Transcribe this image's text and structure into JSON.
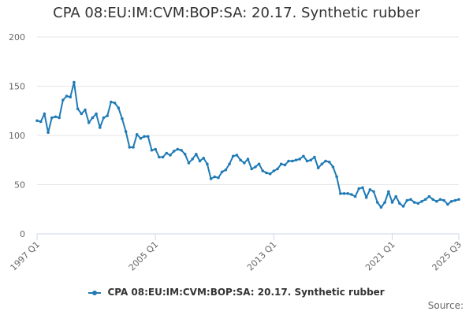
{
  "title": "CPA 08:EU:IM:CVM:BOP:SA: 20.17. Synthetic rubber",
  "source_label": "Source:",
  "colors": {
    "series": "#1f7ab6",
    "grid": "#e6e6e6",
    "axis": "#ccd6eb"
  },
  "chart_data": {
    "type": "line",
    "title": "CPA 08:EU:IM:CVM:BOP:SA: 20.17. Synthetic rubber",
    "xlabel": "",
    "ylabel": "",
    "ylim": [
      0,
      200
    ],
    "y_ticks": [
      0,
      50,
      100,
      150,
      200
    ],
    "x_tick_labels": [
      "1997 Q1",
      "2005 Q1",
      "2013 Q1",
      "2021 Q1",
      "2025 Q3"
    ],
    "x_tick_index": [
      0,
      32,
      64,
      96,
      114
    ],
    "grid": true,
    "legend": "bottom-center",
    "series": [
      {
        "name": "CPA 08:EU:IM:CVM:BOP:SA: 20.17. Synthetic rubber",
        "x": [
          "1997 Q1",
          "1997 Q2",
          "1997 Q3",
          "1997 Q4",
          "1998 Q1",
          "1998 Q2",
          "1998 Q3",
          "1998 Q4",
          "1999 Q1",
          "1999 Q2",
          "1999 Q3",
          "1999 Q4",
          "2000 Q1",
          "2000 Q2",
          "2000 Q3",
          "2000 Q4",
          "2001 Q1",
          "2001 Q2",
          "2001 Q3",
          "2001 Q4",
          "2002 Q1",
          "2002 Q2",
          "2002 Q3",
          "2002 Q4",
          "2003 Q1",
          "2003 Q2",
          "2003 Q3",
          "2003 Q4",
          "2004 Q1",
          "2004 Q2",
          "2004 Q3",
          "2004 Q4",
          "2005 Q1",
          "2005 Q2",
          "2005 Q3",
          "2005 Q4",
          "2006 Q1",
          "2006 Q2",
          "2006 Q3",
          "2006 Q4",
          "2007 Q1",
          "2007 Q2",
          "2007 Q3",
          "2007 Q4",
          "2008 Q1",
          "2008 Q2",
          "2008 Q3",
          "2008 Q4",
          "2009 Q1",
          "2009 Q2",
          "2009 Q3",
          "2009 Q4",
          "2010 Q1",
          "2010 Q2",
          "2010 Q3",
          "2010 Q4",
          "2011 Q1",
          "2011 Q2",
          "2011 Q3",
          "2011 Q4",
          "2012 Q1",
          "2012 Q2",
          "2012 Q3",
          "2012 Q4",
          "2013 Q1",
          "2013 Q2",
          "2013 Q3",
          "2013 Q4",
          "2014 Q1",
          "2014 Q2",
          "2014 Q3",
          "2014 Q4",
          "2015 Q1",
          "2015 Q2",
          "2015 Q3",
          "2015 Q4",
          "2016 Q1",
          "2016 Q2",
          "2016 Q3",
          "2016 Q4",
          "2017 Q1",
          "2017 Q2",
          "2017 Q3",
          "2017 Q4",
          "2018 Q1",
          "2018 Q2",
          "2018 Q3",
          "2018 Q4",
          "2019 Q1",
          "2019 Q2",
          "2019 Q3",
          "2019 Q4",
          "2020 Q1",
          "2020 Q2",
          "2020 Q3",
          "2020 Q4",
          "2021 Q1",
          "2021 Q2",
          "2021 Q3",
          "2021 Q4",
          "2022 Q1",
          "2022 Q2",
          "2022 Q3",
          "2022 Q4",
          "2023 Q1",
          "2023 Q2",
          "2023 Q3",
          "2023 Q4",
          "2024 Q1",
          "2024 Q2",
          "2024 Q3",
          "2024 Q4",
          "2025 Q1",
          "2025 Q2",
          "2025 Q3"
        ],
        "values": [
          115,
          114,
          122,
          103,
          118,
          119,
          118,
          136,
          140,
          139,
          154,
          127,
          122,
          126,
          113,
          118,
          122,
          108,
          118,
          120,
          134,
          133,
          128,
          117,
          104,
          88,
          88,
          101,
          97,
          99,
          99,
          85,
          86,
          78,
          78,
          82,
          80,
          84,
          86,
          85,
          81,
          72,
          76,
          81,
          74,
          77,
          71,
          56,
          58,
          57,
          63,
          65,
          71,
          79,
          80,
          75,
          72,
          76,
          66,
          68,
          71,
          64,
          62,
          61,
          64,
          66,
          71,
          70,
          74,
          74,
          75,
          76,
          79,
          74,
          75,
          78,
          67,
          71,
          74,
          73,
          68,
          58,
          41,
          41,
          41,
          40,
          38,
          46,
          47,
          37,
          45,
          43,
          32,
          27,
          32,
          43,
          32,
          38,
          31,
          28,
          34,
          35,
          32,
          31,
          33,
          35,
          38,
          35,
          33,
          35,
          34,
          30,
          33,
          34,
          35
        ]
      }
    ]
  }
}
